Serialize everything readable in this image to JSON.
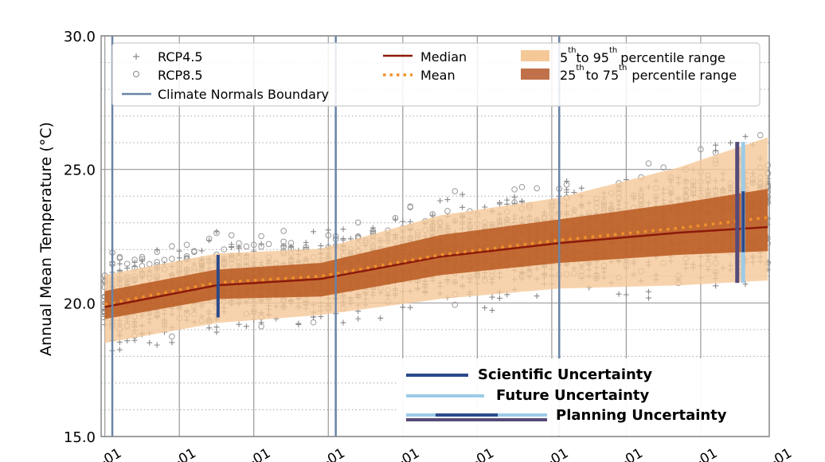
{
  "chart_data": {
    "type": "line",
    "ylabel": "Annual Mean Temperature (°C)",
    "xlabel": "",
    "ylim": [
      15,
      30
    ],
    "xlim": [
      1979.5,
      2069.2
    ],
    "yticks": [
      15,
      20,
      25,
      30
    ],
    "ytick_labels": [
      "15.0",
      "20.0",
      "25.0",
      "30.0"
    ],
    "minor_ygrid_step": 1,
    "xticks": [
      1980,
      1990,
      2000,
      2010,
      2020,
      2030,
      2040,
      2050,
      2060,
      2070
    ],
    "xtick_labels": [
      "-01",
      "-01",
      "-01",
      "-01",
      "-01",
      "-01",
      "-01",
      "-01",
      "-01",
      "-01"
    ],
    "grid": true,
    "x": [
      1980,
      1995,
      2009,
      2025,
      2041,
      2057,
      2069
    ],
    "series": [
      {
        "name": "Median",
        "style": "line",
        "color": "#8b1a0a",
        "values": [
          19.85,
          20.66,
          20.9,
          21.73,
          22.24,
          22.63,
          22.84
        ]
      },
      {
        "name": "Mean",
        "style": "dotted",
        "color": "#f0902a",
        "values": [
          19.95,
          20.76,
          21.0,
          21.8,
          22.35,
          22.8,
          23.2
        ]
      },
      {
        "name": "p5",
        "values": [
          18.5,
          19.25,
          19.55,
          20.15,
          20.54,
          20.66,
          20.84
        ]
      },
      {
        "name": "p25",
        "values": [
          19.4,
          20.15,
          20.24,
          21.04,
          21.5,
          21.8,
          21.94
        ]
      },
      {
        "name": "p75",
        "values": [
          20.45,
          21.25,
          21.5,
          22.54,
          23.13,
          23.73,
          24.27
        ]
      },
      {
        "name": "p95",
        "values": [
          21.05,
          21.85,
          22.03,
          23.28,
          23.94,
          25.07,
          26.2
        ]
      }
    ],
    "bands": [
      {
        "name": "5-95",
        "lower": "p5",
        "upper": "p95",
        "color": "#f5c898"
      },
      {
        "name": "25-75",
        "lower": "p25",
        "upper": "p75",
        "color": "#b8571f"
      }
    ],
    "climate_normals_boundaries": [
      1981,
      2011,
      2041
    ],
    "boundary_color": "#6a84a6",
    "uncertainty_bars": [
      {
        "type": "scientific",
        "x": 1995.2,
        "low": 19.46,
        "high": 21.8,
        "color": "#2b4a8c"
      },
      {
        "type": "planning",
        "x": 2064.9,
        "low": 20.75,
        "high": 26.03,
        "color": "#564a78"
      },
      {
        "type": "future",
        "x": 2065.7,
        "low": 20.75,
        "high": 26.03,
        "color": "#9ccbe6"
      },
      {
        "type": "scientific",
        "x": 2065.7,
        "low": 21.9,
        "high": 24.18,
        "color": "#2b4a8c"
      }
    ],
    "scatter": {
      "series": [
        "RCP4.5",
        "RCP8.5"
      ],
      "markers": [
        "plus",
        "circle"
      ],
      "color": "#888888",
      "spread_beyond_p5_p95": 0.8
    },
    "legend_top": {
      "rcp45": "RCP4.5",
      "rcp85": "RCP8.5",
      "boundary": "Climate Normals Boundary",
      "median": "Median",
      "mean": "Mean",
      "p5_95": {
        "a": "5",
        "sup1": "th",
        "b": "to 95",
        "sup2": "th",
        "c": "percentile range"
      },
      "p25_75": {
        "a": "25",
        "sup1": "th",
        "b": "to 75",
        "sup2": "th",
        "c": "percentile range"
      }
    },
    "legend_bottom": {
      "scientific": "Scientific Uncertainty",
      "future": "Future Uncertainty",
      "planning": "Planning Uncertainty"
    }
  }
}
